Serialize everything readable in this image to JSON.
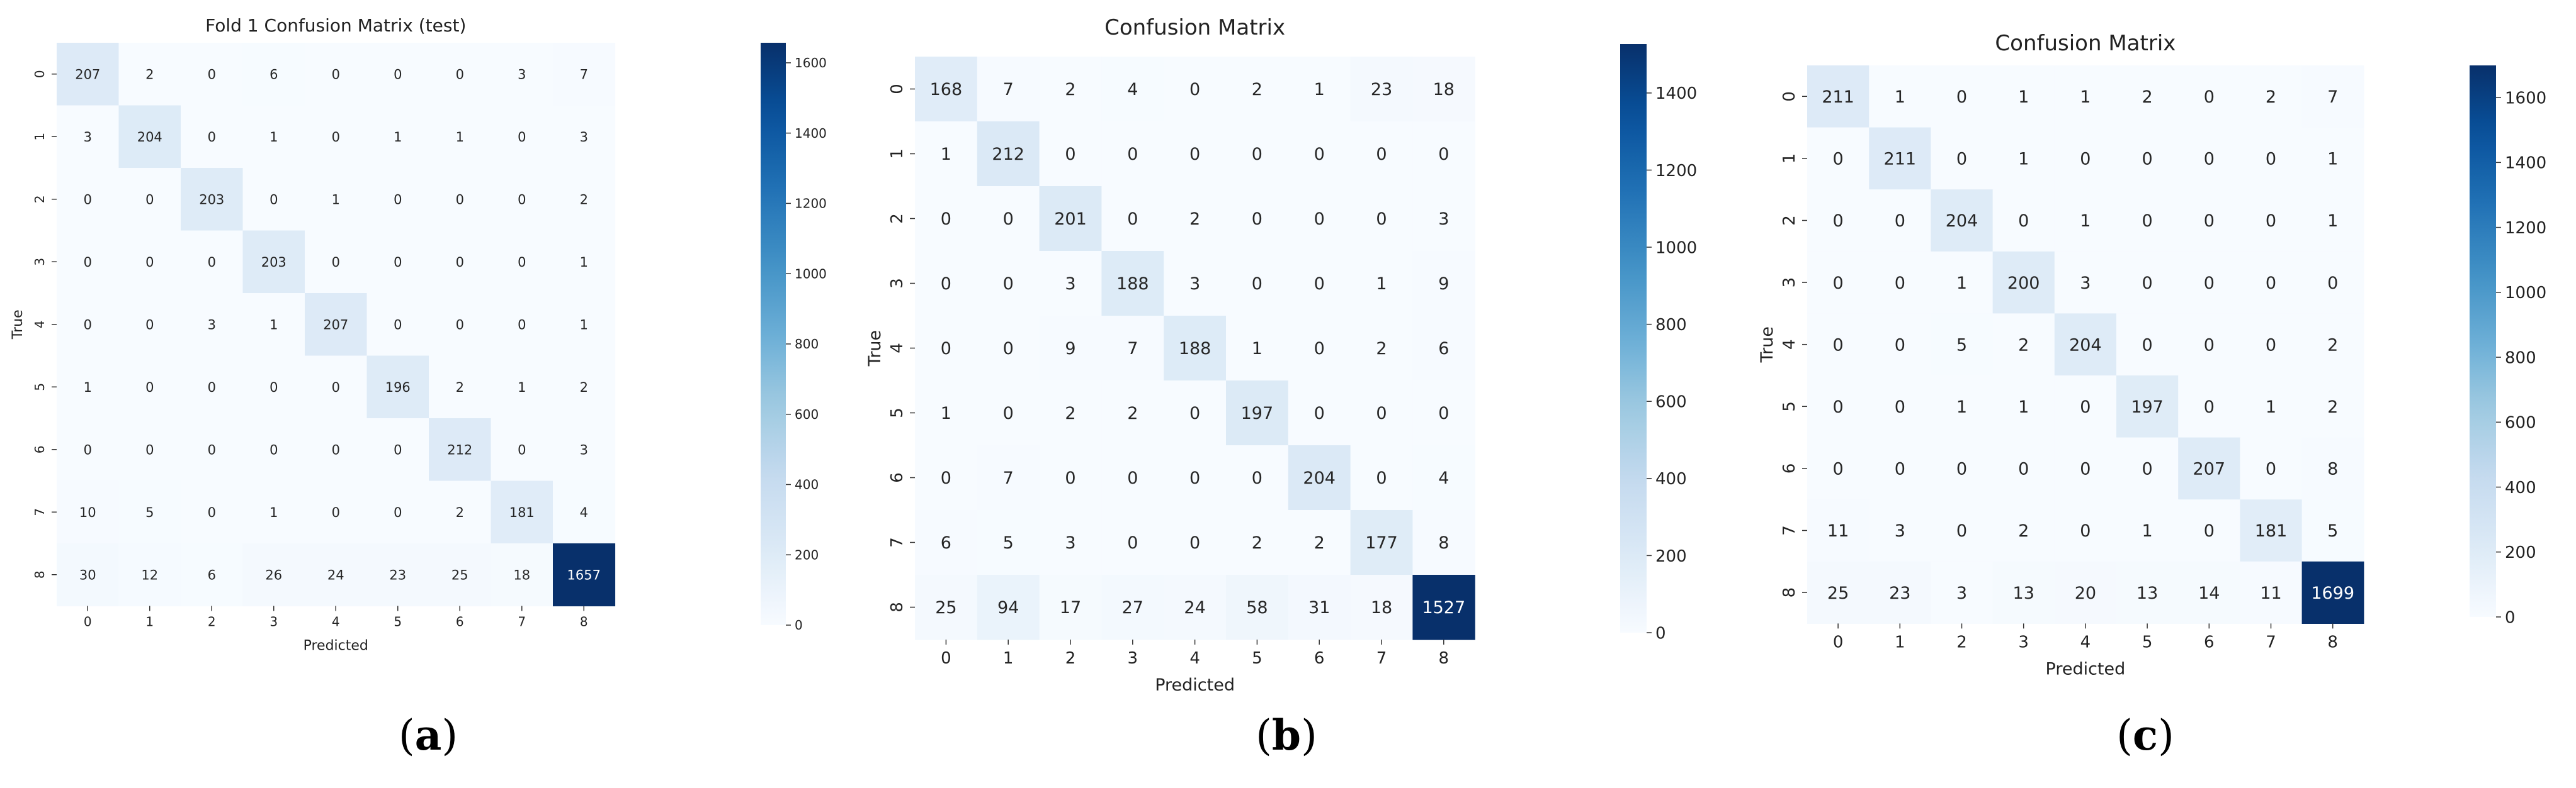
{
  "chart_data": [
    {
      "type": "heatmap",
      "title": "Fold 1 Confusion Matrix (test)",
      "xlabel": "Predicted",
      "ylabel": "True",
      "x_tick_labels": [
        "0",
        "1",
        "2",
        "3",
        "4",
        "5",
        "6",
        "7",
        "8"
      ],
      "y_tick_labels": [
        "0",
        "1",
        "2",
        "3",
        "4",
        "5",
        "6",
        "7",
        "8"
      ],
      "matrix": [
        [
          207,
          2,
          0,
          6,
          0,
          0,
          0,
          3,
          7
        ],
        [
          3,
          204,
          0,
          1,
          0,
          1,
          1,
          0,
          3
        ],
        [
          0,
          0,
          203,
          0,
          1,
          0,
          0,
          0,
          2
        ],
        [
          0,
          0,
          0,
          203,
          0,
          0,
          0,
          0,
          1
        ],
        [
          0,
          0,
          3,
          1,
          207,
          0,
          0,
          0,
          1
        ],
        [
          1,
          0,
          0,
          0,
          0,
          196,
          2,
          1,
          2
        ],
        [
          0,
          0,
          0,
          0,
          0,
          0,
          212,
          0,
          3
        ],
        [
          10,
          5,
          0,
          1,
          0,
          0,
          2,
          181,
          4
        ],
        [
          30,
          12,
          6,
          26,
          24,
          23,
          25,
          18,
          1657
        ]
      ],
      "colorbar_ticks": [
        "0",
        "200",
        "400",
        "600",
        "800",
        "1000",
        "1200",
        "1400",
        "1600"
      ],
      "colorbar_range": [
        0,
        1657
      ],
      "colormap": "Blues",
      "color_low": "#f7fbff",
      "color_high": "#08306b",
      "caption": "a"
    },
    {
      "type": "heatmap",
      "title": "Confusion Matrix",
      "xlabel": "Predicted",
      "ylabel": "True",
      "x_tick_labels": [
        "0",
        "1",
        "2",
        "3",
        "4",
        "5",
        "6",
        "7",
        "8"
      ],
      "y_tick_labels": [
        "0",
        "1",
        "2",
        "3",
        "4",
        "5",
        "6",
        "7",
        "8"
      ],
      "matrix": [
        [
          168,
          7,
          2,
          4,
          0,
          2,
          1,
          23,
          18
        ],
        [
          1,
          212,
          0,
          0,
          0,
          0,
          0,
          0,
          0
        ],
        [
          0,
          0,
          201,
          0,
          2,
          0,
          0,
          0,
          3
        ],
        [
          0,
          0,
          3,
          188,
          3,
          0,
          0,
          1,
          9
        ],
        [
          0,
          0,
          9,
          7,
          188,
          1,
          0,
          2,
          6
        ],
        [
          1,
          0,
          2,
          2,
          0,
          197,
          0,
          0,
          0
        ],
        [
          0,
          7,
          0,
          0,
          0,
          0,
          204,
          0,
          4
        ],
        [
          6,
          5,
          3,
          0,
          0,
          2,
          2,
          177,
          8
        ],
        [
          25,
          94,
          17,
          27,
          24,
          58,
          31,
          18,
          1527
        ]
      ],
      "colorbar_ticks": [
        "0",
        "200",
        "400",
        "600",
        "800",
        "1000",
        "1200",
        "1400"
      ],
      "colorbar_range": [
        0,
        1527
      ],
      "colormap": "Blues",
      "color_low": "#f7fbff",
      "color_high": "#08306b",
      "caption": "b"
    },
    {
      "type": "heatmap",
      "title": "Confusion Matrix",
      "xlabel": "Predicted",
      "ylabel": "True",
      "x_tick_labels": [
        "0",
        "1",
        "2",
        "3",
        "4",
        "5",
        "6",
        "7",
        "8"
      ],
      "y_tick_labels": [
        "0",
        "1",
        "2",
        "3",
        "4",
        "5",
        "6",
        "7",
        "8"
      ],
      "matrix": [
        [
          211,
          1,
          0,
          1,
          1,
          2,
          0,
          2,
          7
        ],
        [
          0,
          211,
          0,
          1,
          0,
          0,
          0,
          0,
          1
        ],
        [
          0,
          0,
          204,
          0,
          1,
          0,
          0,
          0,
          1
        ],
        [
          0,
          0,
          1,
          200,
          3,
          0,
          0,
          0,
          0
        ],
        [
          0,
          0,
          5,
          2,
          204,
          0,
          0,
          0,
          2
        ],
        [
          0,
          0,
          1,
          1,
          0,
          197,
          0,
          1,
          2
        ],
        [
          0,
          0,
          0,
          0,
          0,
          0,
          207,
          0,
          8
        ],
        [
          11,
          3,
          0,
          2,
          0,
          1,
          0,
          181,
          5
        ],
        [
          25,
          23,
          3,
          13,
          20,
          13,
          14,
          11,
          1699
        ]
      ],
      "colorbar_ticks": [
        "0",
        "200",
        "400",
        "600",
        "800",
        "1000",
        "1200",
        "1400",
        "1600"
      ],
      "colorbar_range": [
        0,
        1699
      ],
      "colormap": "Blues",
      "color_low": "#f7fbff",
      "color_high": "#08306b",
      "caption": "c"
    }
  ]
}
